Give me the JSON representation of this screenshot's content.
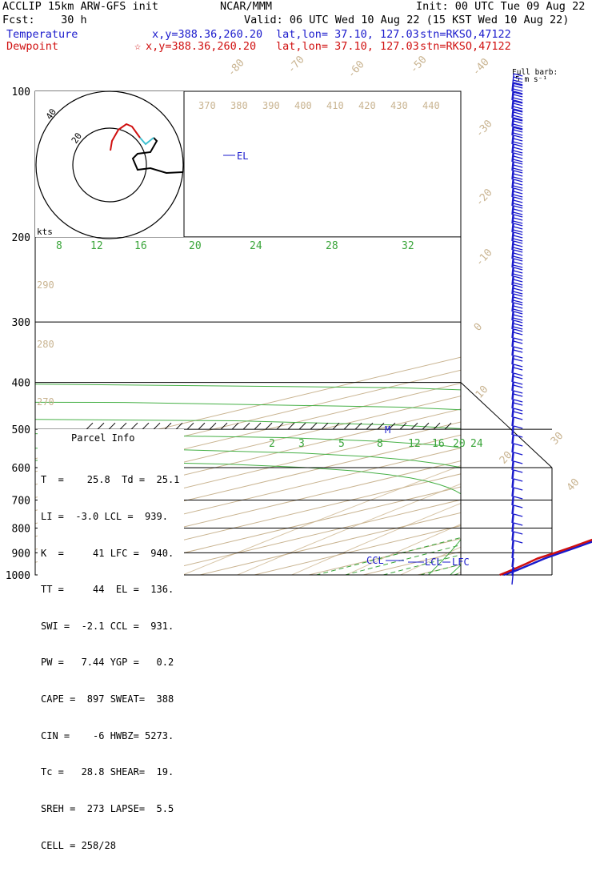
{
  "header": {
    "model": "ACCLIP 15km ARW-GFS init",
    "org": "NCAR/MMM",
    "init": "Init: 00 UTC Tue 09 Aug 22",
    "fcst": "Fcst:    30 h",
    "valid": "Valid: 06 UTC Wed 10 Aug 22 (15 KST Wed 10 Aug 22)",
    "temperature": {
      "label": "Temperature",
      "xy": "x,y=388.36,260.20",
      "latlon": "lat,lon= 37.10, 127.03",
      "stn": "stn=RKSO,47122"
    },
    "dewpoint": {
      "label": "Dewpoint",
      "xy": "x,y=388.36,260.20",
      "latlon": "lat,lon= 37.10, 127.03",
      "stn": "stn=RKSO,47122"
    },
    "barb_legend": "Full barb:",
    "barb_legend_unit": "5 m s⁻¹"
  },
  "parcel_info": {
    "title": "Parcel Info",
    "rows": [
      "T  =    25.8  Td =  25.1",
      "LI =  -3.0 LCL =  939.",
      "K  =     41 LFC =  940.",
      "TT =     44  EL =  136.",
      "SWI =  -2.1 CCL =  931.",
      "PW =   7.44 YGP =   0.2",
      "CAPE =  897 SWEAT=  388",
      "CIN =    -6 HWBZ= 5273.",
      "Tc =   28.8 SHEAR=  19.",
      "SREH =  273 LAPSE=  5.5",
      "CELL = 258/28"
    ]
  },
  "chart_data": {
    "type": "line",
    "title": "Skew-T log-P sounding",
    "ylabel": "Pressure (hPa)",
    "y_log_scale": true,
    "y_ticks": [
      "100",
      "200",
      "300",
      "400",
      "500",
      "600",
      "700",
      "800",
      "900",
      "1000"
    ],
    "xlim": [
      -45,
      40
    ],
    "skewed_isotherm_labels": [
      "-80",
      "-70",
      "-60",
      "-50",
      "-40",
      "-30",
      "-20",
      "-10",
      "0",
      "10",
      "20",
      "30",
      "40"
    ],
    "theta_labels": [
      "370",
      "380",
      "390",
      "400",
      "410",
      "420",
      "430",
      "440"
    ],
    "theta_side_labels": [
      "290",
      "280",
      "270"
    ],
    "mixing_ratio_upper": [
      "8",
      "12",
      "16",
      "20",
      "24",
      "28",
      "32"
    ],
    "mixing_ratio_lower": [
      "2",
      "3",
      "5",
      "8",
      "12",
      "16",
      "20",
      "24"
    ],
    "series": [
      {
        "name": "Temperature",
        "color": "#1a1acc",
        "pressure": [
          1000,
          975,
          950,
          925,
          900,
          875,
          850,
          800,
          750,
          700,
          650,
          600,
          550,
          500,
          475,
          450,
          425,
          400,
          375,
          350,
          325,
          300,
          275,
          250,
          225,
          200,
          175,
          150,
          140,
          125,
          115,
          100
        ],
        "values": [
          25.8,
          24.4,
          22.6,
          20.7,
          19.2,
          17.8,
          16.2,
          13.2,
          10.6,
          7.1,
          3.4,
          -0.2,
          -3.9,
          -7.6,
          -10.4,
          -12.6,
          -15.3,
          -18.1,
          -21.8,
          -25.4,
          -29.4,
          -34.3,
          -39.2,
          -44.3,
          -49.4,
          -56.5,
          -62.6,
          -68.7,
          -72.4,
          -72.5,
          -70.9,
          -68.0
        ]
      },
      {
        "name": "Dewpoint",
        "color": "#d01010",
        "pressure": [
          1000,
          975,
          950,
          925,
          900,
          875,
          850,
          800,
          750,
          700,
          650,
          600,
          550,
          500,
          475,
          450,
          425,
          400,
          375,
          350,
          325,
          300,
          275,
          250,
          225,
          200,
          175,
          150,
          140,
          125,
          115,
          100
        ],
        "values": [
          25.1,
          23.4,
          21.5,
          19.4,
          18.2,
          16.8,
          15.2,
          11.9,
          7.7,
          2.5,
          -1.5,
          -5.7,
          -8.3,
          -11.3,
          -14.1,
          -21.4,
          -25.9,
          -26.8,
          -28.6,
          -32.6,
          -38.0,
          -44.6,
          -50.6,
          -57.6,
          -62.5,
          -67.4,
          -72.8,
          -78.1,
          -80.9,
          -86.3,
          -86.7,
          -81.9
        ]
      }
    ],
    "annotations": [
      "EL",
      "M",
      "CCL",
      "LCL",
      "LFC"
    ],
    "hodograph": {
      "unit_label": "kts",
      "ring_labels": [
        "20",
        "40"
      ]
    }
  }
}
